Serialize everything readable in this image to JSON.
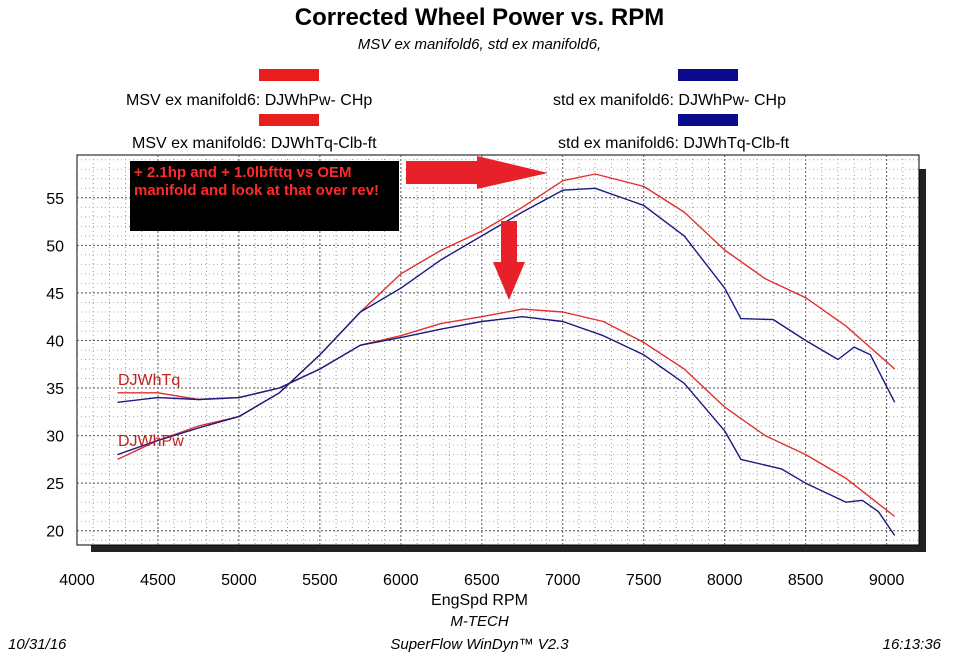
{
  "chart_data": {
    "type": "line",
    "title": "Corrected Wheel Power vs. RPM",
    "subtitle": "MSV ex manifold6, std ex manifold6,",
    "xlabel": "EngSpd  RPM",
    "ylabel": "",
    "xlim": [
      4000,
      9200
    ],
    "ylim": [
      18.5,
      59.5
    ],
    "x_ticks": [
      4000,
      4500,
      5000,
      5500,
      6000,
      6500,
      7000,
      7500,
      8000,
      8500,
      9000
    ],
    "y_ticks": [
      20,
      25,
      30,
      35,
      40,
      45,
      50,
      55
    ],
    "grid": true,
    "legend_position": "top",
    "series": [
      {
        "name": "MSV ex manifold6: DJWhPw- CHp",
        "color": "#e03030",
        "points": [
          [
            4250,
            27.5
          ],
          [
            4500,
            29.5
          ],
          [
            4750,
            31.0
          ],
          [
            5000,
            32.0
          ],
          [
            5250,
            34.5
          ],
          [
            5500,
            38.5
          ],
          [
            5750,
            43.0
          ],
          [
            6000,
            47.0
          ],
          [
            6250,
            49.5
          ],
          [
            6500,
            51.5
          ],
          [
            6750,
            54.0
          ],
          [
            7000,
            56.8
          ],
          [
            7200,
            57.5
          ],
          [
            7500,
            56.2
          ],
          [
            7750,
            53.5
          ],
          [
            8000,
            49.5
          ],
          [
            8250,
            46.5
          ],
          [
            8500,
            44.5
          ],
          [
            8750,
            41.5
          ],
          [
            9050,
            37.0
          ]
        ]
      },
      {
        "name": "std ex manifold6: DJWhPw- CHp",
        "color": "#1a1a80",
        "points": [
          [
            4250,
            28.0
          ],
          [
            4500,
            29.5
          ],
          [
            4750,
            30.8
          ],
          [
            5000,
            32.0
          ],
          [
            5250,
            34.5
          ],
          [
            5500,
            38.5
          ],
          [
            5750,
            43.0
          ],
          [
            6000,
            45.5
          ],
          [
            6250,
            48.5
          ],
          [
            6500,
            51.0
          ],
          [
            6750,
            53.5
          ],
          [
            7000,
            55.8
          ],
          [
            7200,
            56.0
          ],
          [
            7500,
            54.2
          ],
          [
            7750,
            51.0
          ],
          [
            8000,
            45.5
          ],
          [
            8100,
            42.3
          ],
          [
            8300,
            42.2
          ],
          [
            8500,
            40.0
          ],
          [
            8700,
            38.0
          ],
          [
            8800,
            39.3
          ],
          [
            8900,
            38.5
          ],
          [
            9050,
            33.5
          ]
        ]
      },
      {
        "name": "MSV ex manifold6: DJWhTq-Clb-ft",
        "color": "#e03030",
        "points": [
          [
            4250,
            34.5
          ],
          [
            4500,
            34.5
          ],
          [
            4750,
            33.8
          ],
          [
            5000,
            34.0
          ],
          [
            5250,
            35.0
          ],
          [
            5500,
            37.0
          ],
          [
            5750,
            39.5
          ],
          [
            6000,
            40.5
          ],
          [
            6250,
            41.8
          ],
          [
            6500,
            42.5
          ],
          [
            6750,
            43.3
          ],
          [
            7000,
            43.0
          ],
          [
            7250,
            42.0
          ],
          [
            7500,
            39.8
          ],
          [
            7750,
            37.0
          ],
          [
            8000,
            33.0
          ],
          [
            8250,
            30.0
          ],
          [
            8500,
            28.0
          ],
          [
            8750,
            25.5
          ],
          [
            9050,
            21.5
          ]
        ]
      },
      {
        "name": "std ex manifold6: DJWhTq-Clb-ft",
        "color": "#1a1a80",
        "points": [
          [
            4250,
            33.5
          ],
          [
            4500,
            34.0
          ],
          [
            4750,
            33.8
          ],
          [
            5000,
            34.0
          ],
          [
            5250,
            35.0
          ],
          [
            5500,
            37.0
          ],
          [
            5750,
            39.5
          ],
          [
            6000,
            40.3
          ],
          [
            6250,
            41.2
          ],
          [
            6500,
            42.0
          ],
          [
            6750,
            42.5
          ],
          [
            7000,
            42.0
          ],
          [
            7250,
            40.5
          ],
          [
            7500,
            38.5
          ],
          [
            7750,
            35.5
          ],
          [
            8000,
            30.5
          ],
          [
            8100,
            27.5
          ],
          [
            8350,
            26.5
          ],
          [
            8500,
            25.0
          ],
          [
            8750,
            23.0
          ],
          [
            8850,
            23.2
          ],
          [
            8950,
            22.0
          ],
          [
            9050,
            19.5
          ]
        ]
      }
    ],
    "curve_labels": [
      "DJWhTq",
      "DJWhPw"
    ],
    "annotation": "+ 2.1hp and + 1.0lbfttq vs OEM manifold and look at that over rev!"
  },
  "footer": {
    "date": "10/31/16",
    "company": "M-TECH",
    "software": "SuperFlow WinDyn™ V2.3",
    "time": "16:13:36"
  },
  "colors": {
    "msv": "#e03030",
    "std": "#1a1a80",
    "swatch_msv": "#e81e1e",
    "swatch_std": "#0a0a8c",
    "arrow": "#e8202a"
  }
}
